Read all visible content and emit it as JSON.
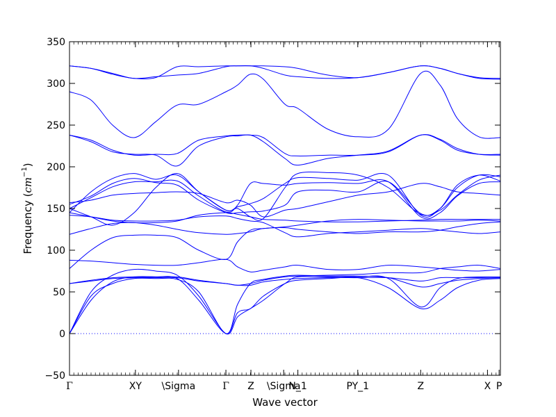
{
  "chart_data": {
    "type": "line",
    "title": "",
    "xlabel": "Wave vector",
    "ylabel": "Frequency ($cm^{-1}$)",
    "ylabel_text": "Frequency (",
    "ylabel_unit": "cm",
    "ylabel_exp": "−1",
    "ylabel_close": ")",
    "ylim": [
      -50,
      350
    ],
    "yticks": [
      -50,
      0,
      50,
      100,
      150,
      200,
      250,
      300,
      350
    ],
    "xlim": [
      0,
      1
    ],
    "line_color": "#0000ff",
    "zero_line": {
      "y": 0,
      "style": "dotted",
      "color": "#0000ff"
    },
    "xticks": [
      {
        "x": 0.0,
        "label": "Γ"
      },
      {
        "x": 0.153,
        "label": "XY"
      },
      {
        "x": 0.253,
        "label": "\\Sigma"
      },
      {
        "x": 0.363,
        "label": "Γ"
      },
      {
        "x": 0.421,
        "label": "Z"
      },
      {
        "x": 0.497,
        "label": "\\Sigma"
      },
      {
        "x": 0.53,
        "label": "N_1"
      },
      {
        "x": 0.669,
        "label": "PY_1"
      },
      {
        "x": 0.815,
        "label": "Z"
      },
      {
        "x": 0.97,
        "label": "X"
      },
      {
        "x": 0.997,
        "label": "P"
      }
    ],
    "series": [
      {
        "x": [
          0,
          0.05,
          0.1,
          0.15,
          0.2,
          0.25,
          0.3,
          0.363,
          0.39,
          0.42,
          0.45,
          0.5,
          0.53,
          0.6,
          0.67,
          0.74,
          0.815,
          0.86,
          0.9,
          0.95,
          1.0
        ],
        "values": [
          0,
          45,
          60,
          66,
          66,
          65,
          50,
          0,
          35,
          60,
          65,
          69,
          70,
          69,
          69,
          67,
          56,
          60,
          64,
          66,
          67
        ]
      },
      {
        "x": [
          0,
          0.05,
          0.1,
          0.15,
          0.2,
          0.25,
          0.3,
          0.363,
          0.39,
          0.42,
          0.45,
          0.5,
          0.53,
          0.6,
          0.67,
          0.74,
          0.815,
          0.86,
          0.9,
          0.95,
          1.0
        ],
        "values": [
          0,
          40,
          62,
          68,
          68,
          66,
          40,
          0,
          25,
          30,
          45,
          60,
          64,
          66,
          67,
          55,
          30,
          40,
          55,
          64,
          66
        ]
      },
      {
        "x": [
          0,
          0.05,
          0.1,
          0.15,
          0.2,
          0.25,
          0.3,
          0.363,
          0.39,
          0.42,
          0.45,
          0.5,
          0.53,
          0.6,
          0.67,
          0.74,
          0.815,
          0.86,
          0.9,
          0.95,
          1.0
        ],
        "values": [
          0,
          50,
          70,
          77,
          75,
          70,
          45,
          0,
          20,
          30,
          40,
          60,
          68,
          68,
          68,
          66,
          32,
          55,
          66,
          68,
          68
        ]
      },
      {
        "x": [
          0,
          0.05,
          0.1,
          0.15,
          0.2,
          0.25,
          0.3,
          0.363,
          0.39,
          0.42,
          0.45,
          0.5,
          0.53,
          0.6,
          0.67,
          0.74,
          0.815,
          0.86,
          0.9,
          0.95,
          1.0
        ],
        "values": [
          60,
          63,
          66,
          67,
          67,
          67,
          63,
          60,
          58,
          58,
          62,
          65,
          66,
          67,
          67,
          67,
          63,
          67,
          67,
          67,
          67
        ]
      },
      {
        "x": [
          0,
          0.05,
          0.1,
          0.15,
          0.2,
          0.25,
          0.3,
          0.363,
          0.39,
          0.42,
          0.45,
          0.5,
          0.53,
          0.6,
          0.67,
          0.74,
          0.815,
          0.86,
          0.9,
          0.95,
          1.0
        ],
        "values": [
          60,
          64,
          67,
          68,
          68,
          68,
          64,
          60,
          58,
          60,
          64,
          68,
          69,
          70,
          71,
          73,
          73,
          78,
          80,
          82,
          78
        ]
      },
      {
        "x": [
          0,
          0.05,
          0.1,
          0.15,
          0.2,
          0.25,
          0.3,
          0.363,
          0.39,
          0.42,
          0.45,
          0.5,
          0.53,
          0.6,
          0.67,
          0.74,
          0.815,
          0.86,
          0.9,
          0.95,
          1.0
        ],
        "values": [
          88,
          87,
          85,
          83,
          82,
          82,
          85,
          89,
          80,
          74,
          76,
          80,
          82,
          77,
          77,
          82,
          80,
          78,
          76,
          75,
          77
        ]
      },
      {
        "x": [
          0,
          0.05,
          0.1,
          0.15,
          0.2,
          0.25,
          0.3,
          0.363,
          0.39,
          0.42,
          0.45,
          0.5,
          0.53,
          0.6,
          0.67,
          0.74,
          0.815,
          0.86,
          0.9,
          0.95,
          1.0
        ],
        "values": [
          78,
          100,
          115,
          118,
          118,
          115,
          100,
          89,
          110,
          124,
          126,
          128,
          130,
          135,
          137,
          136,
          135,
          135,
          135,
          136,
          135
        ]
      },
      {
        "x": [
          0,
          0.05,
          0.1,
          0.15,
          0.2,
          0.25,
          0.3,
          0.363,
          0.39,
          0.42,
          0.45,
          0.5,
          0.53,
          0.6,
          0.67,
          0.74,
          0.815,
          0.86,
          0.9,
          0.95,
          1.0
        ],
        "values": [
          119,
          126,
          132,
          133,
          130,
          125,
          121,
          119,
          120,
          122,
          126,
          127,
          125,
          122,
          120,
          122,
          122,
          124,
          128,
          132,
          134
        ]
      },
      {
        "x": [
          0,
          0.05,
          0.1,
          0.15,
          0.2,
          0.25,
          0.3,
          0.363,
          0.39,
          0.42,
          0.45,
          0.5,
          0.53,
          0.6,
          0.67,
          0.74,
          0.815,
          0.86,
          0.9,
          0.95,
          1.0
        ],
        "values": [
          142,
          140,
          136,
          135,
          135,
          136,
          140,
          141,
          138,
          135,
          133,
          121,
          116,
          120,
          122,
          124,
          126,
          124,
          122,
          120,
          122
        ]
      },
      {
        "x": [
          0,
          0.05,
          0.1,
          0.15,
          0.2,
          0.25,
          0.3,
          0.363,
          0.39,
          0.42,
          0.45,
          0.5,
          0.53,
          0.6,
          0.67,
          0.74,
          0.815,
          0.86,
          0.9,
          0.95,
          1.0
        ],
        "values": [
          145,
          140,
          135,
          133,
          133,
          135,
          142,
          145,
          143,
          140,
          137,
          136,
          135,
          134,
          134,
          135,
          136,
          137,
          137,
          137,
          137
        ]
      },
      {
        "x": [
          0,
          0.05,
          0.1,
          0.15,
          0.2,
          0.25,
          0.3,
          0.363,
          0.39,
          0.42,
          0.45,
          0.5,
          0.53,
          0.6,
          0.67,
          0.74,
          0.815,
          0.86,
          0.9,
          0.95,
          1.0
        ],
        "values": [
          155,
          165,
          180,
          186,
          181,
          178,
          160,
          145,
          145,
          146,
          147,
          154,
          170,
          172,
          170,
          182,
          144,
          148,
          166,
          184,
          190
        ]
      },
      {
        "x": [
          0,
          0.05,
          0.1,
          0.15,
          0.2,
          0.25,
          0.3,
          0.363,
          0.39,
          0.42,
          0.45,
          0.5,
          0.53,
          0.6,
          0.67,
          0.74,
          0.815,
          0.86,
          0.9,
          0.95,
          1.0
        ],
        "values": [
          150,
          163,
          176,
          182,
          182,
          183,
          165,
          146,
          154,
          180,
          180,
          178,
          180,
          181,
          180,
          182,
          140,
          145,
          165,
          180,
          182
        ]
      },
      {
        "x": [
          0,
          0.05,
          0.1,
          0.15,
          0.2,
          0.25,
          0.3,
          0.363,
          0.39,
          0.42,
          0.45,
          0.5,
          0.53,
          0.6,
          0.67,
          0.74,
          0.815,
          0.86,
          0.9,
          0.95,
          1.0
        ],
        "values": [
          157,
          160,
          166,
          168,
          169,
          170,
          168,
          157,
          160,
          154,
          140,
          148,
          150,
          158,
          166,
          170,
          180,
          176,
          170,
          168,
          166
        ]
      },
      {
        "x": [
          0,
          0.05,
          0.1,
          0.15,
          0.2,
          0.25,
          0.3,
          0.363,
          0.39,
          0.42,
          0.45,
          0.5,
          0.53,
          0.6,
          0.67,
          0.74,
          0.815,
          0.86,
          0.9,
          0.95,
          1.0
        ],
        "values": [
          145,
          170,
          186,
          192,
          185,
          190,
          170,
          148,
          150,
          140,
          138,
          175,
          192,
          193,
          190,
          175,
          143,
          150,
          175,
          190,
          188
        ]
      },
      {
        "x": [
          0,
          0.05,
          0.1,
          0.15,
          0.2,
          0.25,
          0.3,
          0.363,
          0.39,
          0.42,
          0.45,
          0.5,
          0.53,
          0.6,
          0.67,
          0.74,
          0.815,
          0.86,
          0.9,
          0.95,
          1.0
        ],
        "values": [
          150,
          140,
          130,
          145,
          175,
          192,
          170,
          148,
          152,
          156,
          162,
          180,
          187,
          186,
          184,
          190,
          142,
          150,
          178,
          190,
          183
        ]
      },
      {
        "x": [
          0,
          0.05,
          0.1,
          0.15,
          0.2,
          0.25,
          0.3,
          0.363,
          0.39,
          0.42,
          0.45,
          0.5,
          0.53,
          0.6,
          0.67,
          0.74,
          0.815,
          0.86,
          0.9,
          0.95,
          1.0
        ],
        "values": [
          238,
          232,
          220,
          214,
          215,
          216,
          232,
          237,
          238,
          238,
          235,
          216,
          213,
          214,
          214,
          218,
          238,
          233,
          222,
          215,
          214
        ]
      },
      {
        "x": [
          0,
          0.05,
          0.1,
          0.15,
          0.2,
          0.25,
          0.3,
          0.363,
          0.39,
          0.42,
          0.45,
          0.5,
          0.53,
          0.6,
          0.67,
          0.74,
          0.815,
          0.86,
          0.9,
          0.95,
          1.0
        ],
        "values": [
          238,
          230,
          218,
          215,
          214,
          201,
          225,
          236,
          237,
          238,
          230,
          210,
          202,
          210,
          214,
          219,
          238,
          232,
          220,
          215,
          215
        ]
      },
      {
        "x": [
          0,
          0.05,
          0.1,
          0.15,
          0.2,
          0.25,
          0.3,
          0.363,
          0.39,
          0.42,
          0.45,
          0.5,
          0.53,
          0.6,
          0.67,
          0.74,
          0.815,
          0.86,
          0.9,
          0.95,
          1.0
        ],
        "values": [
          290,
          280,
          250,
          235,
          254,
          274,
          275,
          290,
          298,
          311,
          305,
          275,
          270,
          245,
          236,
          245,
          312,
          298,
          258,
          236,
          235
        ]
      },
      {
        "x": [
          0,
          0.05,
          0.1,
          0.15,
          0.2,
          0.25,
          0.3,
          0.363,
          0.39,
          0.42,
          0.45,
          0.5,
          0.53,
          0.6,
          0.67,
          0.74,
          0.815,
          0.86,
          0.9,
          0.95,
          1.0
        ],
        "values": [
          321,
          318,
          312,
          306,
          308,
          310,
          312,
          320,
          321,
          321,
          318,
          310,
          308,
          306,
          307,
          313,
          321,
          318,
          312,
          306,
          305
        ]
      },
      {
        "x": [
          0,
          0.05,
          0.1,
          0.15,
          0.2,
          0.25,
          0.3,
          0.363,
          0.39,
          0.42,
          0.45,
          0.5,
          0.53,
          0.6,
          0.67,
          0.74,
          0.815,
          0.86,
          0.9,
          0.95,
          1.0
        ],
        "values": [
          321,
          318,
          311,
          306,
          307,
          320,
          320,
          321,
          321,
          321,
          321,
          320,
          318,
          310,
          307,
          313,
          321,
          318,
          312,
          307,
          306
        ]
      }
    ]
  }
}
